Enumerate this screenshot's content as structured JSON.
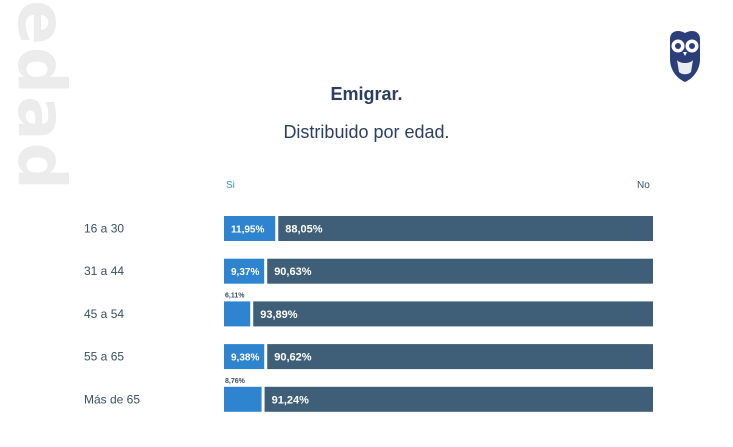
{
  "watermark": "edad",
  "logo_icon": "owl-logo-icon",
  "colors": {
    "si": "#2f84cf",
    "no": "#3f5f78",
    "title": "#2c3e62"
  },
  "chart_data": {
    "type": "bar",
    "orientation": "horizontal",
    "stacked": true,
    "title": "Emigrar.",
    "subtitle": "Distribuido por edad.",
    "categories": [
      "16 a 30",
      "31 a 44",
      "45 a 54",
      "55 a 65",
      "Más de 65"
    ],
    "series": [
      {
        "name": "Si",
        "values": [
          11.95,
          9.37,
          6.11,
          9.38,
          8.76
        ],
        "labels": [
          "11,95%",
          "9,37%",
          "6,11%",
          "9,38%",
          "8,76%"
        ]
      },
      {
        "name": "No",
        "values": [
          88.05,
          90.63,
          93.89,
          90.62,
          91.24
        ],
        "labels": [
          "88,05%",
          "90,63%",
          "93,89%",
          "90,62%",
          "91,24%"
        ]
      }
    ],
    "xlim": [
      0,
      100
    ],
    "legend": "top"
  }
}
